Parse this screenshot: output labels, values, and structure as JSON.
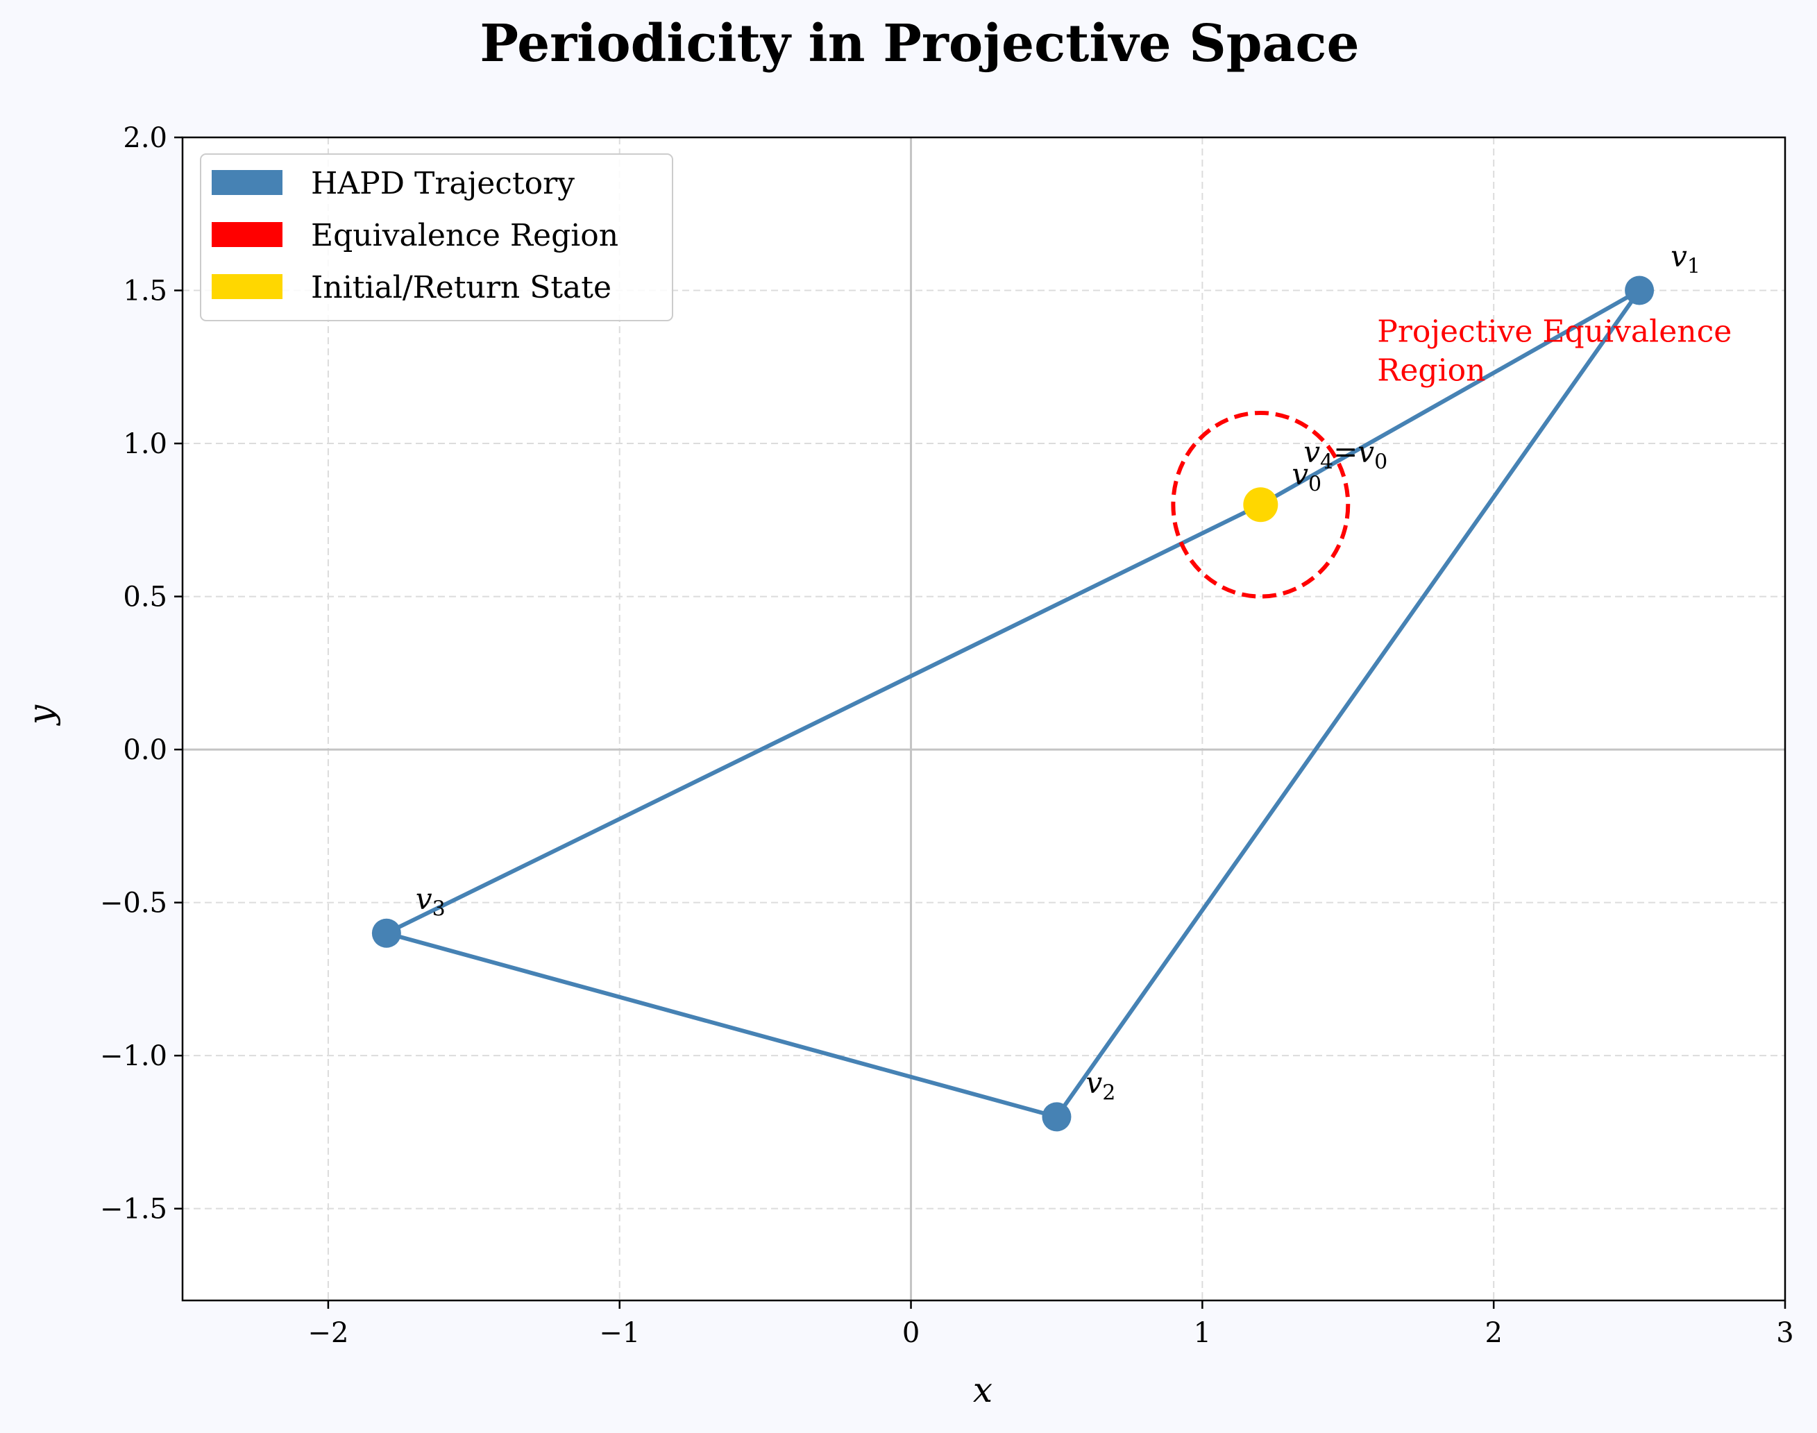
{
  "chart_data": {
    "type": "line",
    "title": "Periodicity in Projective Space",
    "xlabel": "x",
    "ylabel": "y",
    "xlim": [
      -2.5,
      3.0
    ],
    "ylim": [
      -1.8,
      2.0
    ],
    "xticks": [
      -2,
      -1,
      0,
      1,
      2,
      3
    ],
    "yticks": [
      -1.5,
      -1.0,
      -0.5,
      0.0,
      0.5,
      1.0,
      1.5,
      2.0
    ],
    "xtick_labels": [
      "−2",
      "−1",
      "0",
      "1",
      "2",
      "3"
    ],
    "ytick_labels": [
      "−1.5",
      "−1.0",
      "−0.5",
      "0.0",
      "0.5",
      "1.0",
      "1.5",
      "2.0"
    ],
    "grid": true,
    "legend_position": "top-left",
    "series": [
      {
        "name": "HAPD Trajectory",
        "color": "#4682b4",
        "points": [
          {
            "label": "v",
            "sub": "0",
            "x": 1.2,
            "y": 0.8
          },
          {
            "label": "v",
            "sub": "1",
            "x": 2.5,
            "y": 1.5
          },
          {
            "label": "v",
            "sub": "2",
            "x": 0.5,
            "y": -1.2
          },
          {
            "label": "v",
            "sub": "3",
            "x": -1.8,
            "y": -0.6
          },
          {
            "label": "v",
            "sub": "4",
            "x": 1.2,
            "y": 0.8
          }
        ]
      }
    ],
    "equivalence_region": {
      "name": "Equivalence Region",
      "color": "#ff0000",
      "center": [
        1.2,
        0.8
      ],
      "radius": 0.3,
      "label_line1": "Projective Equivalence",
      "label_line2": "Region",
      "label_x": 1.6,
      "label_y": 1.3
    },
    "initial_state": {
      "name": "Initial/Return State",
      "color": "#ffd700",
      "x": 1.2,
      "y": 0.8
    },
    "return_label": {
      "text_main": "v",
      "sub_left": "4",
      "eq": "=",
      "text_right": "v",
      "sub_right": "0"
    },
    "legend": [
      {
        "label": "HAPD Trajectory",
        "color": "#4682b4"
      },
      {
        "label": "Equivalence Region",
        "color": "#ff0000"
      },
      {
        "label": "Initial/Return State",
        "color": "#ffd700"
      }
    ]
  }
}
